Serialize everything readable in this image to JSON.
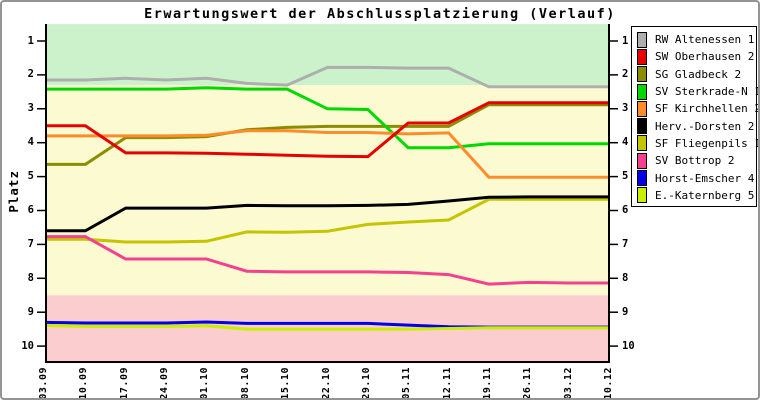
{
  "window": {
    "title": "Erwartungswert der Abschlussplatzierung (Verlauf)"
  },
  "chart_data": {
    "type": "line",
    "title": "Erwartungswert der Abschlussplatzierung (Verlauf)",
    "ylabel": "Platz",
    "xlabel": "",
    "y_axis": {
      "ticks": [
        1,
        2,
        3,
        4,
        5,
        6,
        7,
        8,
        9,
        10
      ],
      "min": 0.5,
      "max": 10.5,
      "inverted": true,
      "mirrored_right": true
    },
    "x_labels": [
      "03.09",
      "10.09",
      "17.09",
      "24.09",
      "01.10",
      "08.10",
      "15.10",
      "22.10",
      "29.10",
      "05.11",
      "12.11",
      "19.11",
      "26.11",
      "03.12",
      "10.12"
    ],
    "zones": [
      {
        "name": "green-zone",
        "from": 0.5,
        "to": 2.3,
        "color": "#ccf2cc"
      },
      {
        "name": "yellow-zone",
        "from": 2.3,
        "to": 8.5,
        "color": "#fbfad0"
      },
      {
        "name": "red-zone",
        "from": 8.5,
        "to": 10.5,
        "color": "#fccdce"
      }
    ],
    "series": [
      {
        "name": "RW Altenessen 1",
        "color": "#aeaeae",
        "values": [
          2.15,
          2.15,
          2.1,
          2.15,
          2.1,
          2.25,
          2.3,
          1.78,
          1.78,
          1.8,
          1.8,
          2.35,
          2.35,
          2.35,
          2.35
        ]
      },
      {
        "name": "SW Oberhausen 2",
        "color": "#e60000",
        "values": [
          3.5,
          3.5,
          4.3,
          4.3,
          4.31,
          4.34,
          4.37,
          4.4,
          4.41,
          3.42,
          3.42,
          2.82,
          2.82,
          2.82,
          2.82
        ]
      },
      {
        "name": "SG Gladbeck 2",
        "color": "#8c8c00",
        "values": [
          4.64,
          4.64,
          3.85,
          3.85,
          3.82,
          3.62,
          3.55,
          3.52,
          3.52,
          3.52,
          3.52,
          2.88,
          2.88,
          2.88,
          2.88
        ]
      },
      {
        "name": "SV Sterkrade-N 1",
        "color": "#00d900",
        "values": [
          2.42,
          2.42,
          2.42,
          2.42,
          2.38,
          2.42,
          2.42,
          3.0,
          3.02,
          4.15,
          4.15,
          4.03,
          4.03,
          4.03,
          4.03
        ]
      },
      {
        "name": "SF Kirchhellen 2",
        "color": "#ff8c2a",
        "values": [
          3.8,
          3.8,
          3.8,
          3.8,
          3.78,
          3.65,
          3.65,
          3.7,
          3.7,
          3.74,
          3.71,
          5.02,
          5.02,
          5.02,
          5.02
        ]
      },
      {
        "name": "Herv.-Dorsten 2",
        "color": "#000000",
        "values": [
          6.6,
          6.6,
          5.93,
          5.93,
          5.93,
          5.85,
          5.86,
          5.86,
          5.85,
          5.82,
          5.72,
          5.61,
          5.6,
          5.6,
          5.6
        ]
      },
      {
        "name": "SF Fliegenpils 1",
        "color": "#c4c400",
        "values": [
          6.85,
          6.85,
          6.93,
          6.93,
          6.91,
          6.63,
          6.64,
          6.61,
          6.41,
          6.34,
          6.28,
          5.67,
          5.67,
          5.67,
          5.67
        ]
      },
      {
        "name": "SV Bottrop 2",
        "color": "#f4408e",
        "values": [
          6.77,
          6.77,
          7.43,
          7.43,
          7.43,
          7.79,
          7.81,
          7.81,
          7.81,
          7.83,
          7.89,
          8.17,
          8.12,
          8.14,
          8.14
        ]
      },
      {
        "name": "Horst-Emscher 4",
        "color": "#0000e6",
        "values": [
          9.3,
          9.32,
          9.32,
          9.32,
          9.29,
          9.33,
          9.33,
          9.33,
          9.33,
          9.38,
          9.43,
          9.44,
          9.44,
          9.44,
          9.44
        ]
      },
      {
        "name": "E.-Katernberg 5",
        "color": "#c8ee00",
        "values": [
          9.39,
          9.42,
          9.42,
          9.42,
          9.4,
          9.5,
          9.5,
          9.5,
          9.5,
          9.5,
          9.48,
          9.46,
          9.46,
          9.46,
          9.46
        ]
      }
    ],
    "draw_order": [
      0,
      2,
      3,
      4,
      6,
      7,
      8,
      9,
      5,
      1
    ],
    "legend_position": "right",
    "grid": false
  }
}
